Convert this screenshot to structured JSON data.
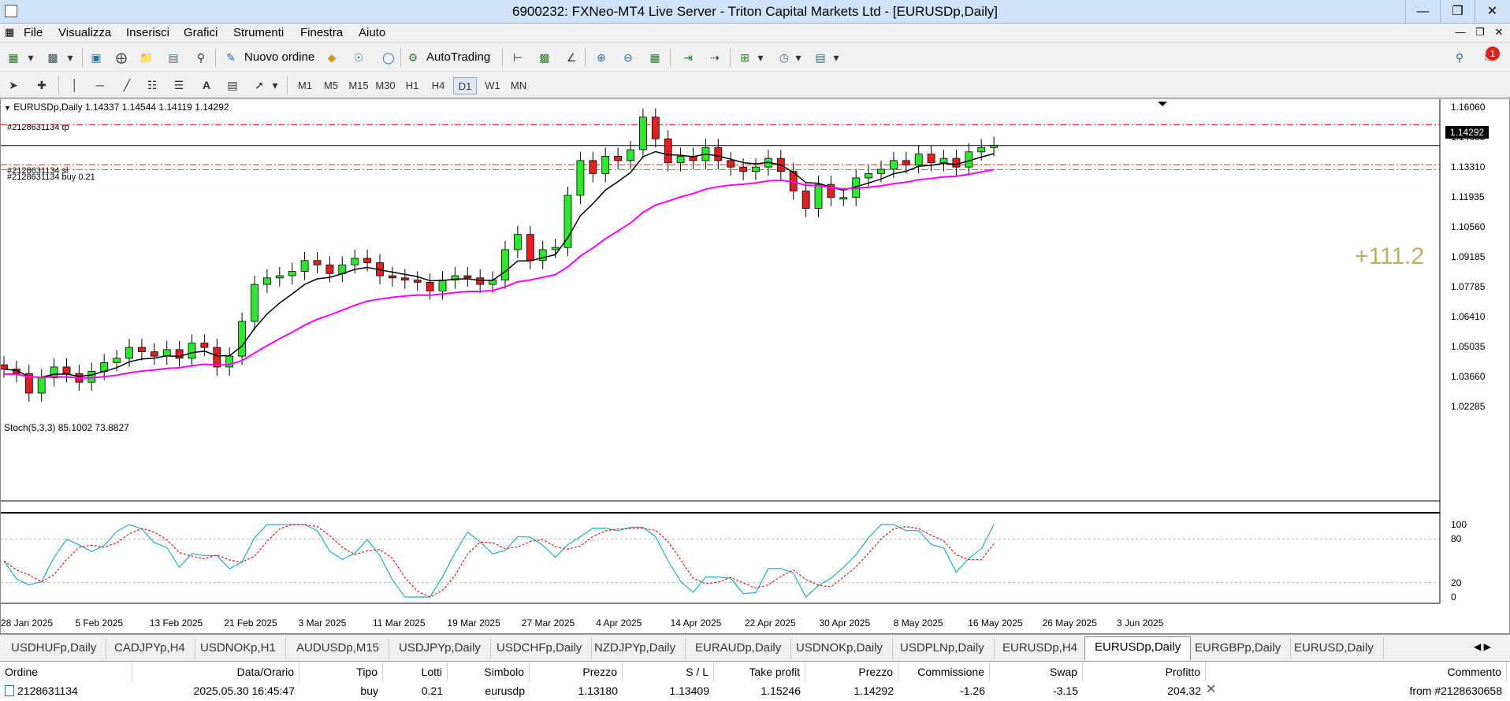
{
  "window": {
    "title": "6900232: FXNeo-MT4 Live Server - Triton Capital Markets Ltd - [EURUSDp,Daily]"
  },
  "menu": [
    "File",
    "Visualizza",
    "Inserisci",
    "Grafici",
    "Strumenti",
    "Finestra",
    "Aiuto"
  ],
  "toolbar": {
    "new_order": "Nuovo ordine",
    "autotrading": "AutoTrading",
    "notification_count": "1"
  },
  "timeframes": [
    "M1",
    "M5",
    "M15",
    "M30",
    "H1",
    "H4",
    "D1",
    "W1",
    "MN"
  ],
  "active_timeframe": "D1",
  "chart": {
    "symbol_line": "EURUSDp,Daily  1.14337 1.14544 1.14119 1.14292",
    "tp_label": "#2128631134 tp",
    "sl_label": "#2128631134 sl",
    "buy_label": "#2128631134 buy 0.21",
    "current_price": "1.14292",
    "profit_points": "+111.2",
    "stoch_label": "Stoch(5,3,3) 85.1002 73.8827",
    "price_ticks": [
      "1.16060",
      "1.14685",
      "1.13310",
      "1.11935",
      "1.10560",
      "1.09185",
      "1.07785",
      "1.06410",
      "1.05035",
      "1.03660",
      "1.02285"
    ],
    "stoch_ticks": [
      "100",
      "80",
      "20",
      "0"
    ],
    "date_ticks": [
      "28 Jan 2025",
      "5 Feb 2025",
      "13 Feb 2025",
      "21 Feb 2025",
      "3 Mar 2025",
      "11 Mar 2025",
      "19 Mar 2025",
      "27 Mar 2025",
      "4 Apr 2025",
      "14 Apr 2025",
      "22 Apr 2025",
      "30 Apr 2025",
      "8 May 2025",
      "16 May 2025",
      "26 May 2025",
      "3 Jun 2025"
    ]
  },
  "chart_data": {
    "type": "line",
    "symbol": "EURUSDp",
    "timeframe": "Daily",
    "ohlc_current": {
      "open": 1.14337,
      "high": 1.14544,
      "low": 1.14119,
      "close": 1.14292
    },
    "horizontal_levels": {
      "tp": 1.15246,
      "open_price": 1.1318,
      "sl": 1.13409,
      "bid": 1.14292
    },
    "ylim": [
      1.0195,
      1.1632
    ],
    "series_approx_close": [
      1.04,
      1.038,
      1.029,
      1.036,
      1.041,
      1.038,
      1.034,
      1.039,
      1.043,
      1.045,
      1.05,
      1.048,
      1.046,
      1.049,
      1.045,
      1.052,
      1.05,
      1.041,
      1.046,
      1.062,
      1.079,
      1.082,
      1.083,
      1.085,
      1.09,
      1.088,
      1.084,
      1.088,
      1.091,
      1.089,
      1.083,
      1.082,
      1.081,
      1.08,
      1.076,
      1.081,
      1.083,
      1.082,
      1.079,
      1.081,
      1.095,
      1.102,
      1.09,
      1.095,
      1.096,
      1.12,
      1.136,
      1.13,
      1.138,
      1.136,
      1.141,
      1.156,
      1.146,
      1.135,
      1.138,
      1.136,
      1.142,
      1.136,
      1.133,
      1.131,
      1.133,
      1.137,
      1.131,
      1.122,
      1.114,
      1.125,
      1.119,
      1.119,
      1.128,
      1.13,
      1.132,
      1.136,
      1.134,
      1.139,
      1.135,
      1.137,
      1.133,
      1.14,
      1.142,
      1.143
    ]
  },
  "tabs": [
    "USDHUFp,Daily",
    "CADJPYp,H4",
    "USDNOKp,H1",
    "AUDUSDp,M15",
    "USDJPYp,Daily",
    "USDCHFp,Daily",
    "NZDJPYp,Daily",
    "EURAUDp,Daily",
    "USDNOKp,Daily",
    "USDPLNp,Daily",
    "EURUSDp,H4",
    "EURUSDp,Daily",
    "EURGBPp,Daily",
    "EURUSD,Daily"
  ],
  "active_tab": "EURUSDp,Daily",
  "trade_table": {
    "headers": [
      "Ordine",
      "Data/Orario",
      "Tipo",
      "Lotti",
      "Simbolo",
      "Prezzo",
      "S / L",
      "Take profit",
      "Prezzo",
      "Commissione",
      "Swap",
      "Profitto",
      "Commento"
    ],
    "row": [
      "2128631134",
      "2025.05.30 16:45:47",
      "buy",
      "0.21",
      "eurusdp",
      "1.13180",
      "1.13409",
      "1.15246",
      "1.14292",
      "-1.26",
      "-3.15",
      "204.32",
      "from #2128630658"
    ]
  }
}
